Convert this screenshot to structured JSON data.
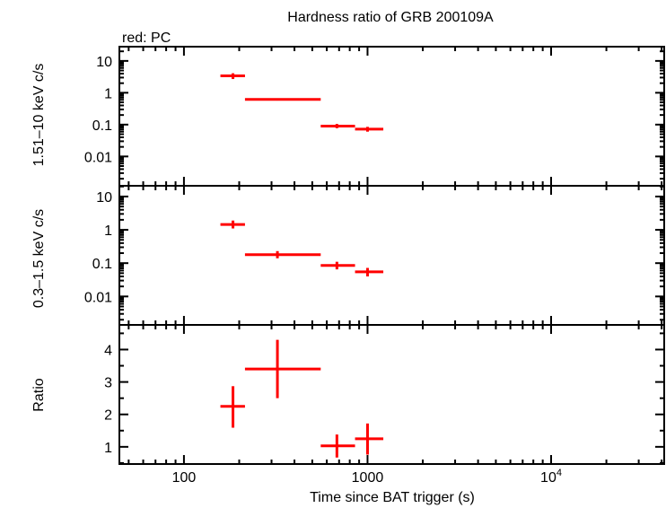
{
  "chart_data": {
    "type": "scatter",
    "title": "Hardness ratio of GRB 200109A",
    "subtitle": "red: PC",
    "xlabel": "Time since BAT trigger (s)",
    "xscale": "log",
    "xlim": [
      44.5,
      41300
    ],
    "xticks": [
      {
        "v": 100,
        "label": "100"
      },
      {
        "v": 1000,
        "label": "1000"
      },
      {
        "v": 10000,
        "label": "10",
        "sup": "4"
      }
    ],
    "series_color": "#ff0000",
    "x": [
      185,
      323,
      681,
      1000
    ],
    "xerr_low": [
      158,
      215,
      556,
      855
    ],
    "xerr_high": [
      215,
      556,
      855,
      1219
    ],
    "panels": [
      {
        "ylabel": "1.51–10 keV c/s",
        "yscale": "log",
        "ylim": [
          0.0012,
          28
        ],
        "yticks": [
          {
            "v": 10,
            "label": "10"
          },
          {
            "v": 1,
            "label": "1"
          },
          {
            "v": 0.1,
            "label": "0.1"
          },
          {
            "v": 0.01,
            "label": "0.01"
          }
        ],
        "y": [
          3.4,
          0.62,
          0.09,
          0.072
        ],
        "ylow": [
          2.7,
          0.57,
          0.077,
          0.06
        ],
        "yhigh": [
          4.1,
          0.67,
          0.105,
          0.085
        ]
      },
      {
        "ylabel": "0.3–1.5 keV c/s",
        "yscale": "log",
        "ylim": [
          0.0014,
          21
        ],
        "yticks": [
          {
            "v": 10,
            "label": "10"
          },
          {
            "v": 1,
            "label": "1"
          },
          {
            "v": 0.1,
            "label": "0.1"
          },
          {
            "v": 0.01,
            "label": "0.01"
          }
        ],
        "y": [
          1.45,
          0.18,
          0.085,
          0.055
        ],
        "ylow": [
          1.1,
          0.14,
          0.065,
          0.04
        ],
        "yhigh": [
          1.9,
          0.23,
          0.11,
          0.072
        ]
      },
      {
        "ylabel": "Ratio",
        "yscale": "linear",
        "ylim": [
          0.47,
          4.76
        ],
        "yticks": [
          {
            "v": 4,
            "label": "4"
          },
          {
            "v": 3,
            "label": "3"
          },
          {
            "v": 2,
            "label": "2"
          },
          {
            "v": 1,
            "label": "1"
          }
        ],
        "y": [
          2.25,
          3.4,
          1.03,
          1.25
        ],
        "ylow": [
          1.59,
          2.5,
          0.67,
          0.76
        ],
        "yhigh": [
          2.87,
          4.3,
          1.38,
          1.72
        ]
      }
    ]
  }
}
